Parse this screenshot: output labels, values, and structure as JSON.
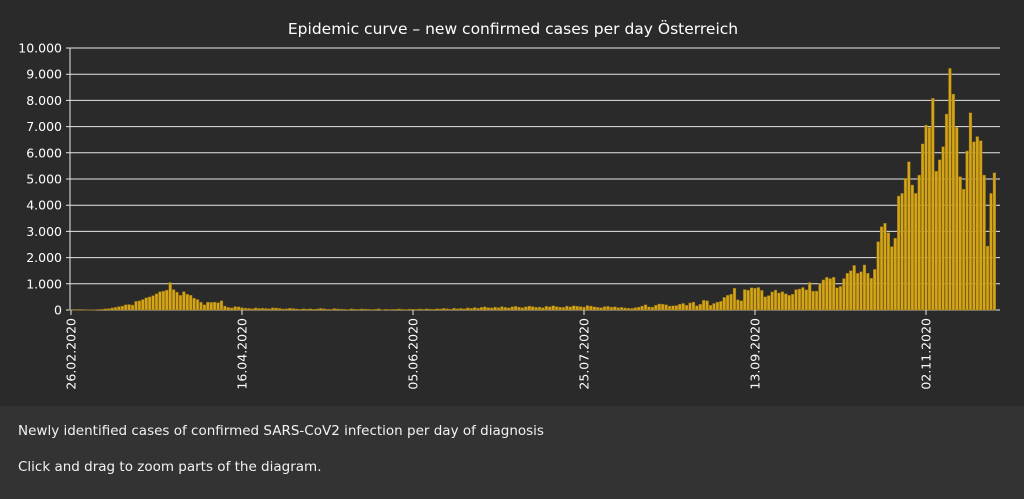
{
  "chart_data": {
    "type": "bar",
    "title": "Epidemic curve – new confirmed cases per day Österreich",
    "xlabel": "",
    "ylabel": "",
    "start_date": "26.02.2020",
    "x_tick_labels": [
      "26.02.2020",
      "16.04.2020",
      "05.06.2020",
      "25.07.2020",
      "13.09.2020",
      "02.11.2020"
    ],
    "x_tick_day_index": [
      0,
      50,
      100,
      150,
      200,
      250
    ],
    "y_ticks": [
      0,
      1000,
      2000,
      3000,
      4000,
      5000,
      6000,
      7000,
      8000,
      9000,
      10000
    ],
    "y_tick_labels": [
      "0",
      "1.000",
      "2.000",
      "3.000",
      "4.000",
      "5.000",
      "6.000",
      "7.000",
      "8.000",
      "9.000",
      "10.000"
    ],
    "ylim": [
      0,
      10000
    ],
    "grid": true,
    "bar_color": "#d4a519",
    "bar_edge": "#8a6a0c",
    "values": [
      2,
      3,
      3,
      2,
      5,
      8,
      12,
      14,
      21,
      30,
      45,
      55,
      80,
      100,
      130,
      150,
      200,
      210,
      190,
      330,
      350,
      400,
      470,
      500,
      550,
      620,
      700,
      720,
      760,
      1050,
      780,
      680,
      560,
      700,
      600,
      560,
      450,
      400,
      300,
      200,
      300,
      290,
      300,
      280,
      350,
      150,
      100,
      80,
      130,
      120,
      90,
      70,
      60,
      50,
      80,
      60,
      70,
      60,
      50,
      80,
      75,
      60,
      40,
      45,
      70,
      55,
      40,
      30,
      50,
      35,
      45,
      30,
      40,
      60,
      45,
      30,
      25,
      55,
      40,
      35,
      30,
      20,
      45,
      30,
      25,
      40,
      35,
      25,
      20,
      30,
      45,
      15,
      30,
      20,
      25,
      30,
      40,
      25,
      20,
      35,
      30,
      25,
      40,
      30,
      45,
      35,
      30,
      50,
      40,
      60,
      45,
      35,
      70,
      50,
      60,
      45,
      80,
      60,
      95,
      70,
      100,
      120,
      90,
      80,
      110,
      90,
      130,
      100,
      80,
      120,
      140,
      110,
      90,
      120,
      150,
      130,
      100,
      110,
      90,
      140,
      120,
      160,
      130,
      110,
      100,
      150,
      120,
      160,
      140,
      130,
      110,
      170,
      150,
      120,
      100,
      90,
      130,
      140,
      110,
      120,
      90,
      100,
      80,
      70,
      60,
      90,
      110,
      150,
      200,
      120,
      110,
      180,
      230,
      220,
      200,
      150,
      160,
      170,
      220,
      250,
      180,
      270,
      300,
      160,
      220,
      370,
      350,
      180,
      250,
      300,
      330,
      480,
      560,
      600,
      830,
      390,
      350,
      780,
      760,
      850,
      830,
      860,
      750,
      500,
      550,
      690,
      760,
      650,
      700,
      620,
      560,
      600,
      780,
      800,
      860,
      770,
      1050,
      720,
      720,
      1000,
      1150,
      1250,
      1200,
      1250,
      850,
      900,
      1200,
      1400,
      1500,
      1700,
      1400,
      1460,
      1720,
      1400,
      1210,
      1550,
      2610,
      3180,
      3310,
      2950,
      2420,
      2740,
      4350,
      4450,
      5030,
      5660,
      4770,
      4450,
      5150,
      6340,
      7060,
      6970,
      8080,
      5300,
      5730,
      6230,
      7480,
      9220,
      8240,
      6970,
      5090,
      4610,
      6070,
      7530,
      6420,
      6620,
      6460,
      5150,
      2440,
      4450,
      5240
    ]
  },
  "footer": {
    "description": "Newly identified cases of confirmed SARS-CoV2 infection per day of diagnosis",
    "hint": "Click and drag to zoom parts of the diagram."
  }
}
